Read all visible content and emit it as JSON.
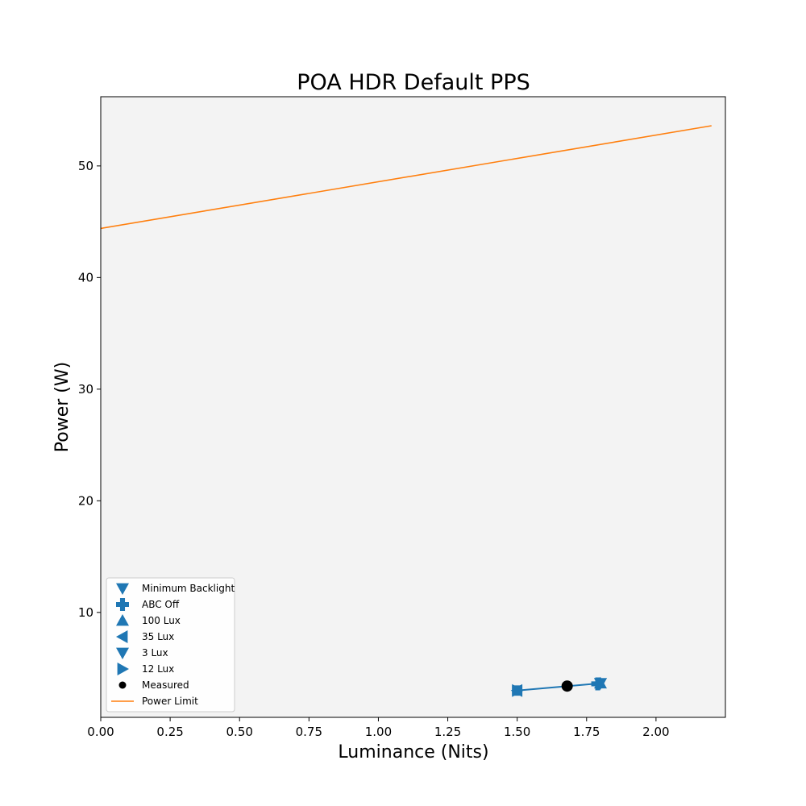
{
  "chart_data": {
    "type": "scatter",
    "title": "POA HDR Default PPS",
    "xlabel": "Luminance (Nits)",
    "ylabel": "Power (W)",
    "xlim": [
      0,
      2.25
    ],
    "ylim": [
      0.6,
      56.2
    ],
    "xticks": [
      0,
      0.25,
      0.5,
      0.75,
      1.0,
      1.25,
      1.5,
      1.75,
      2.0
    ],
    "xtick_labels": [
      "0.00",
      "0.25",
      "0.50",
      "0.75",
      "1.00",
      "1.25",
      "1.50",
      "1.75",
      "2.00"
    ],
    "yticks": [
      10,
      20,
      30,
      40,
      50
    ],
    "ytick_labels": [
      "10",
      "20",
      "30",
      "40",
      "50"
    ],
    "grid": false,
    "background": "#f3f3f3",
    "legend_position": "lower-left",
    "series_color": "#1f77b4",
    "limit_color": "#ff7f0e",
    "measured_color": "#000000",
    "connecting_line": {
      "x": [
        1.5,
        1.8
      ],
      "y": [
        3.0,
        3.65
      ]
    },
    "series": [
      {
        "name": "Minimum Backlight",
        "marker": "triangle-down",
        "x": 1.8,
        "y": 3.65
      },
      {
        "name": "ABC Off",
        "marker": "plus",
        "x": 1.79,
        "y": 3.6
      },
      {
        "name": "100 Lux",
        "marker": "triangle-up",
        "x": 1.8,
        "y": 3.65
      },
      {
        "name": "35 Lux",
        "marker": "triangle-left",
        "x": 1.5,
        "y": 3.0
      },
      {
        "name": "3 Lux",
        "marker": "triangle-down",
        "x": 1.8,
        "y": 3.65
      },
      {
        "name": "12 Lux",
        "marker": "triangle-right",
        "x": 1.5,
        "y": 3.0
      },
      {
        "name": "",
        "marker": "square",
        "x": 1.5,
        "y": 3.0
      }
    ],
    "measured": {
      "name": "Measured",
      "x": 1.68,
      "y": 3.4
    },
    "power_limit": {
      "name": "Power Limit",
      "x": [
        0,
        2.2
      ],
      "y": [
        44.4,
        53.6
      ]
    }
  }
}
